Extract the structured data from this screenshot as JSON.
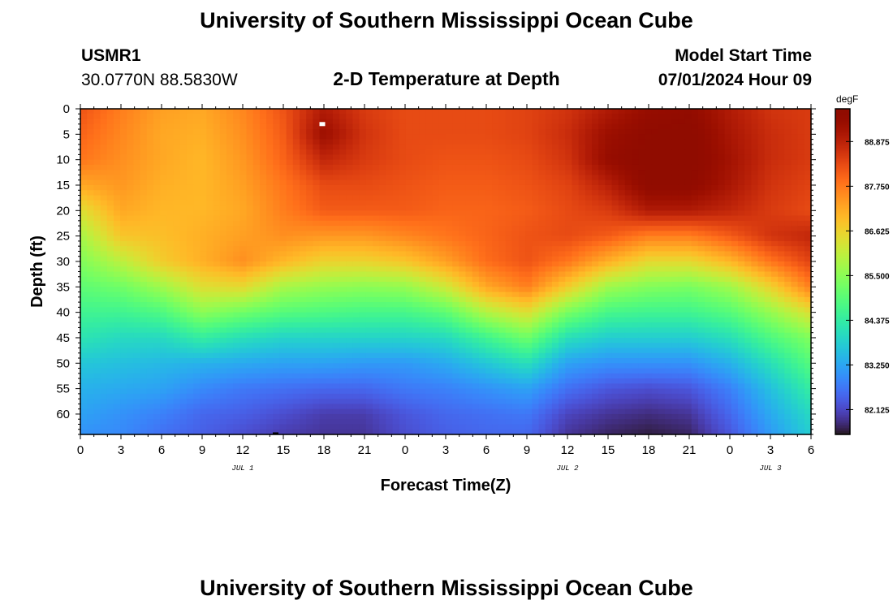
{
  "header": {
    "title": "University of Southern Mississippi Ocean Cube",
    "station_id": "USMR1",
    "station_coords": "30.0770N  88.5830W",
    "plot_title": "2-D Temperature at Depth",
    "model_start_label": "Model Start Time",
    "model_start_value": "07/01/2024 Hour 09",
    "footer_title": "University of Southern Mississippi Ocean Cube"
  },
  "colors": {
    "cold": "#30123b",
    "warm": "#7a0403",
    "missing": "#ffffff"
  },
  "chart_data": {
    "type": "heatmap",
    "title": "2-D Temperature at Depth",
    "xlabel": "Forecast Time(Z)",
    "ylabel": "Depth (ft)",
    "x_unit": "forecast hours from 00Z Jul 1",
    "x_range": [
      0,
      54
    ],
    "y_range": [
      0,
      64
    ],
    "y_inverted": true,
    "x_ticks": [
      0,
      3,
      6,
      9,
      12,
      15,
      18,
      21,
      24,
      27,
      30,
      33,
      36,
      39,
      42,
      45,
      48,
      51,
      54
    ],
    "x_tick_labels": [
      "0",
      "3",
      "6",
      "9",
      "12",
      "15",
      "18",
      "21",
      "0",
      "3",
      "6",
      "9",
      "12",
      "15",
      "18",
      "21",
      "0",
      "3",
      "6"
    ],
    "y_ticks": [
      0,
      5,
      10,
      15,
      20,
      25,
      30,
      35,
      40,
      45,
      50,
      55,
      60
    ],
    "y_tick_labels": [
      "0",
      "5",
      "10",
      "15",
      "20",
      "25",
      "30",
      "35",
      "40",
      "45",
      "50",
      "55",
      "60"
    ],
    "date_labels": [
      {
        "text": "JUL 1",
        "hour": 12
      },
      {
        "text": "JUL 2",
        "hour": 36
      },
      {
        "text": "JUL 3",
        "hour": 51
      }
    ],
    "colorbar": {
      "unit": "degF",
      "min": 81.5,
      "max": 89.7,
      "ticks": [
        82.125,
        83.25,
        84.375,
        85.5,
        86.625,
        87.75,
        88.875
      ],
      "tick_labels": [
        "82.125",
        "83.250",
        "84.375",
        "85.500",
        "86.625",
        "87.750",
        "88.875"
      ]
    },
    "grid_depths": [
      0,
      5,
      10,
      15,
      20,
      25,
      30,
      35,
      40,
      45,
      50,
      55,
      60,
      64
    ],
    "grid_hours": [
      0,
      3,
      6,
      9,
      12,
      15,
      18,
      21,
      24,
      27,
      30,
      33,
      36,
      39,
      42,
      45,
      48,
      51,
      54
    ],
    "values": [
      [
        88.2,
        87.7,
        87.3,
        87.2,
        87.6,
        88.2,
        89.0,
        88.5,
        88.3,
        88.3,
        88.3,
        88.4,
        88.6,
        89.0,
        89.4,
        89.5,
        89.0,
        88.6,
        88.5
      ],
      [
        88.0,
        87.6,
        87.2,
        87.1,
        87.5,
        88.1,
        89.3,
        88.6,
        88.3,
        88.3,
        88.3,
        88.4,
        88.7,
        89.3,
        89.6,
        89.7,
        89.1,
        88.7,
        88.5
      ],
      [
        87.8,
        87.5,
        87.2,
        87.0,
        87.4,
        88.0,
        88.8,
        88.5,
        88.3,
        88.2,
        88.2,
        88.3,
        88.6,
        89.4,
        89.7,
        89.7,
        89.2,
        88.7,
        88.5
      ],
      [
        87.2,
        87.4,
        87.1,
        87.0,
        87.3,
        87.8,
        88.3,
        88.3,
        88.2,
        88.1,
        88.1,
        88.2,
        88.4,
        88.9,
        89.6,
        89.6,
        89.1,
        88.6,
        88.4
      ],
      [
        86.4,
        87.2,
        87.0,
        87.0,
        87.2,
        87.7,
        88.1,
        88.1,
        88.1,
        88.0,
        88.0,
        88.1,
        88.3,
        88.5,
        89.0,
        89.0,
        88.8,
        88.5,
        88.3
      ],
      [
        85.8,
        86.8,
        86.9,
        87.1,
        87.3,
        87.5,
        87.4,
        87.4,
        87.6,
        87.8,
        88.0,
        88.2,
        88.3,
        88.1,
        87.7,
        87.7,
        88.1,
        88.6,
        88.8
      ],
      [
        85.4,
        86.0,
        86.7,
        87.1,
        87.5,
        87.0,
        86.6,
        86.6,
        86.8,
        87.3,
        87.9,
        88.2,
        87.8,
        87.1,
        86.5,
        86.5,
        87.0,
        87.8,
        88.4
      ],
      [
        85.0,
        85.2,
        85.7,
        86.4,
        86.5,
        85.8,
        85.6,
        85.5,
        85.6,
        86.2,
        87.2,
        87.7,
        86.7,
        85.7,
        85.4,
        85.3,
        85.7,
        86.6,
        87.7
      ],
      [
        84.6,
        84.6,
        84.8,
        85.5,
        85.2,
        84.9,
        84.8,
        84.7,
        84.7,
        85.0,
        85.9,
        86.4,
        85.3,
        84.7,
        84.6,
        84.6,
        84.9,
        85.6,
        86.4
      ],
      [
        84.2,
        84.0,
        84.0,
        84.4,
        84.1,
        83.9,
        83.9,
        83.9,
        83.9,
        84.0,
        84.6,
        85.2,
        84.1,
        83.8,
        83.8,
        83.8,
        84.1,
        84.8,
        85.4
      ],
      [
        83.7,
        83.6,
        83.5,
        83.4,
        83.3,
        83.2,
        83.2,
        83.1,
        83.1,
        83.3,
        83.7,
        84.1,
        83.2,
        83.0,
        83.0,
        83.0,
        83.4,
        84.1,
        84.9
      ],
      [
        83.4,
        83.3,
        83.2,
        82.9,
        82.7,
        82.6,
        82.5,
        82.5,
        82.7,
        82.8,
        83.0,
        83.2,
        82.6,
        82.3,
        82.2,
        82.3,
        82.8,
        83.6,
        84.4
      ],
      [
        83.2,
        83.0,
        82.8,
        82.5,
        82.4,
        82.2,
        82.0,
        82.0,
        82.3,
        82.5,
        82.6,
        82.7,
        82.1,
        81.9,
        81.8,
        81.9,
        82.5,
        83.3,
        84.0
      ],
      [
        83.0,
        82.9,
        82.6,
        82.4,
        82.2,
        82.0,
        81.9,
        81.9,
        82.2,
        82.4,
        82.5,
        82.5,
        81.9,
        81.7,
        81.6,
        81.7,
        82.3,
        83.1,
        83.8
      ]
    ]
  }
}
